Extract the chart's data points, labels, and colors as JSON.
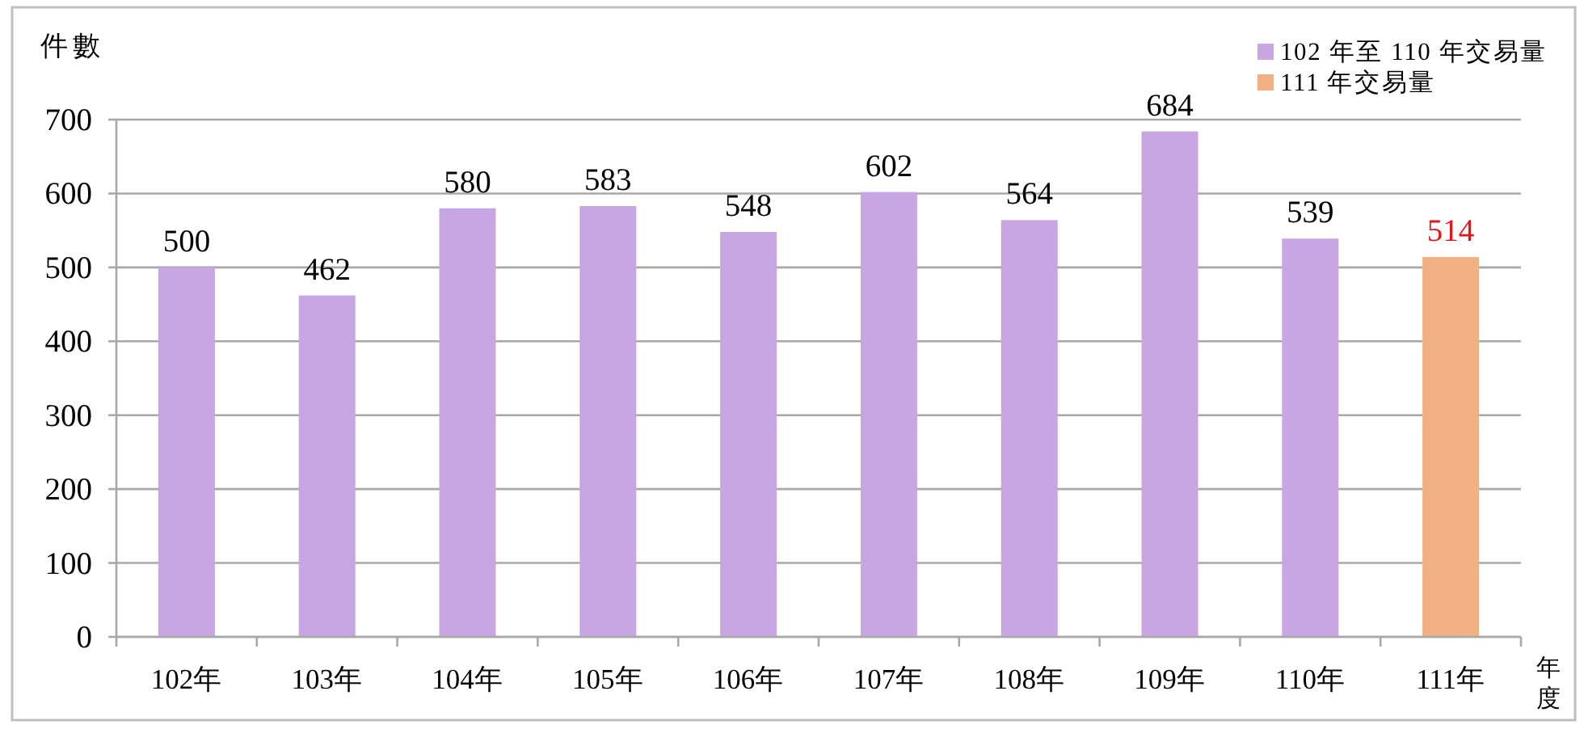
{
  "chart_data": {
    "type": "bar",
    "ylabel": "件數",
    "xlabel": "年度",
    "categories": [
      "102年",
      "103年",
      "104年",
      "105年",
      "106年",
      "107年",
      "108年",
      "109年",
      "110年",
      "111年"
    ],
    "series": [
      {
        "name": "102 年至 110 年交易量",
        "color": "#c8a6e2",
        "values": [
          500,
          462,
          580,
          583,
          548,
          602,
          564,
          684,
          539,
          null
        ]
      },
      {
        "name": "111 年交易量",
        "color": "#f3b183",
        "values": [
          null,
          null,
          null,
          null,
          null,
          null,
          null,
          null,
          null,
          514
        ]
      }
    ],
    "ylim": [
      0,
      700
    ],
    "yticks": [
      0,
      100,
      200,
      300,
      400,
      500,
      600,
      700
    ],
    "grid": "y",
    "legend": "top right",
    "data_labels": true
  }
}
